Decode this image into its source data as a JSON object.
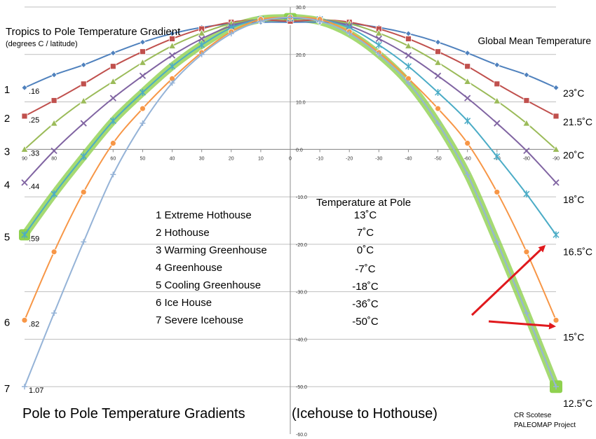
{
  "chart_data": {
    "type": "line",
    "title": "Tropics to Pole Temperature Gradient",
    "subtitle": "(degrees C / latitude)",
    "right_title": "Global Mean Temperature",
    "bottom_title": "Pole to Pole Temperature Gradients",
    "bottom_title_2": "(Icehouse to Hothouse)",
    "credit_1": "CR Scotese",
    "credit_2": "PALEOMAP Project",
    "pole_header": "Temperature at Pole",
    "x": [
      90,
      80,
      70,
      60,
      50,
      40,
      30,
      20,
      10,
      0,
      -10,
      -20,
      -30,
      -40,
      -50,
      -60,
      -70,
      -80,
      -90
    ],
    "x_tick_labels": [
      "90",
      "80",
      "70",
      "60",
      "50",
      "40",
      "30",
      "20",
      "10",
      "0",
      "-10",
      "-20",
      "-30",
      "-40",
      "-50",
      "-60",
      "-70",
      "-80",
      "-90"
    ],
    "y_tick_labels": [
      "30.0",
      "20.0",
      "10.0",
      "0.0",
      "-10.0",
      "-20.0",
      "-30.0",
      "-40.0",
      "-50.0",
      "-60.0"
    ],
    "y_ticks": [
      30,
      20,
      10,
      0,
      -10,
      -20,
      -30,
      -40,
      -50,
      -60
    ],
    "ylim": [
      -60,
      30
    ],
    "xlim": [
      90,
      -90
    ],
    "grid": "horizontal",
    "series": [
      {
        "number": "1",
        "slope": ".16",
        "gmt": "23˚C",
        "name": "Extreme Hothouse",
        "pole_temp": "13˚C",
        "color": "#4f81bd",
        "marker": "diamond",
        "values": [
          13.0,
          15.7,
          17.8,
          20.3,
          22.6,
          24.4,
          25.7,
          26.5,
          26.8,
          26.8,
          26.8,
          26.5,
          25.7,
          24.4,
          22.6,
          20.3,
          17.8,
          15.7,
          13.0
        ]
      },
      {
        "number": "2",
        "slope": ".25",
        "gmt": "21.5˚C",
        "name": "Hothouse",
        "pole_temp": "7˚C",
        "color": "#c0504d",
        "marker": "square",
        "values": [
          7.0,
          10.3,
          13.8,
          17.5,
          20.6,
          23.3,
          25.4,
          26.8,
          27.3,
          27.0,
          27.3,
          26.8,
          25.4,
          23.3,
          20.6,
          17.5,
          13.8,
          10.3,
          7.0
        ]
      },
      {
        "number": "3",
        "slope": ".33",
        "gmt": "20˚C",
        "name": "Warming Greenhouse",
        "pole_temp": "0˚C",
        "color": "#9bbb59",
        "marker": "triangle",
        "values": [
          0.0,
          5.5,
          10.2,
          14.3,
          18.3,
          21.8,
          24.5,
          26.5,
          27.4,
          27.6,
          27.4,
          26.5,
          24.5,
          21.8,
          18.3,
          14.3,
          10.2,
          5.5,
          0.0
        ]
      },
      {
        "number": "4",
        "slope": ".44",
        "gmt": "18˚C",
        "name": "Greenhouse",
        "pole_temp": "-7˚C",
        "color": "#8064a2",
        "marker": "x",
        "values": [
          -7.0,
          -0.3,
          5.5,
          10.8,
          15.5,
          19.8,
          23.3,
          26.0,
          27.4,
          27.6,
          27.4,
          26.0,
          23.3,
          19.8,
          15.5,
          10.8,
          5.5,
          -0.3,
          -7.0
        ]
      },
      {
        "number": "5",
        "slope": ".59",
        "gmt": "16.5˚C",
        "name": "Cooling Greenhouse",
        "pole_temp": "-18˚C",
        "color": "#4bacc6",
        "marker": "star",
        "values": [
          -18.0,
          -9.4,
          -1.5,
          6.0,
          12.0,
          17.5,
          22.0,
          25.6,
          27.4,
          27.7,
          27.4,
          25.6,
          22.0,
          17.5,
          12.0,
          6.0,
          -1.5,
          -9.4,
          -18.0
        ]
      },
      {
        "number": "6",
        "slope": ".82",
        "gmt": "15˚C",
        "name": "Ice House",
        "pole_temp": "-36˚C",
        "color": "#f79646",
        "marker": "circle",
        "values": [
          -36.0,
          -21.6,
          -9.0,
          1.3,
          8.6,
          14.9,
          20.4,
          24.8,
          27.4,
          27.8,
          27.4,
          24.8,
          20.4,
          14.9,
          8.6,
          1.3,
          -9.0,
          -21.6,
          -36.0
        ]
      },
      {
        "number": "7",
        "slope": "1.07",
        "gmt": "12.5˚C",
        "name": "Severe Icehouse",
        "pole_temp": "-50˚C",
        "color": "#95b3d7",
        "marker": "plus",
        "values": [
          -50.0,
          -34.5,
          -19.5,
          -5.3,
          5.5,
          14.0,
          20.0,
          24.4,
          27.0,
          27.8,
          27.0,
          24.4,
          20.0,
          14.0,
          5.5,
          -5.3,
          -19.5,
          -34.5,
          -50.0
        ]
      }
    ],
    "colors": {
      "grid": "#bfbfbf",
      "axis": "#8c8c8c",
      "highlight": "#8fd14f",
      "arrow": "#e0191d",
      "text": "#000000"
    }
  }
}
